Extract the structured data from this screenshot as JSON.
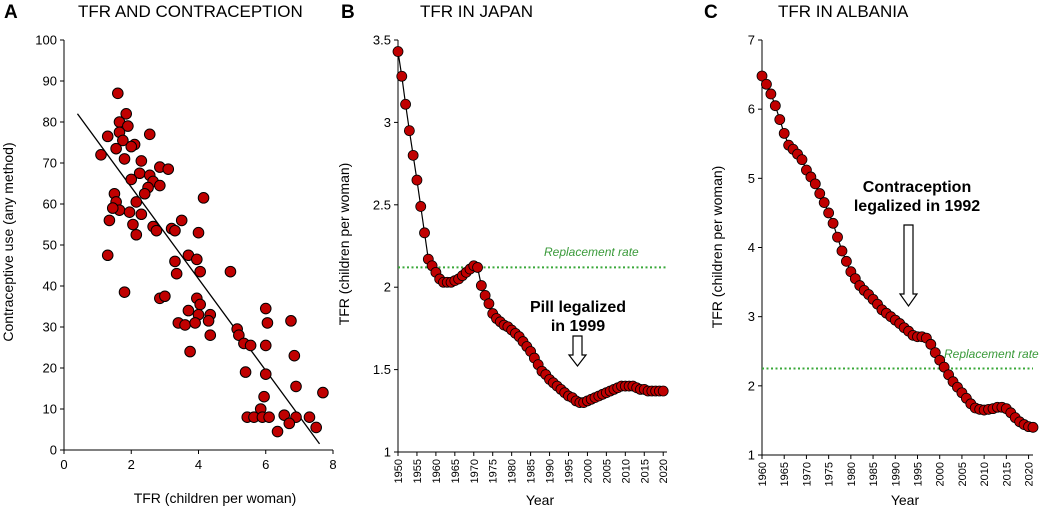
{
  "chart_data": [
    {
      "type": "scatter",
      "panel_letter": "A",
      "title": "TFR AND CONTRACEPTION",
      "xlabel": "TFR (children per woman)",
      "ylabel": "Contraceptive use (any method)",
      "xlim": [
        0,
        8
      ],
      "ylim": [
        0,
        100
      ],
      "xticks": [
        "0",
        "2",
        "4",
        "6",
        "8"
      ],
      "yticks": [
        "0",
        "10",
        "20",
        "30",
        "40",
        "50",
        "60",
        "70",
        "80",
        "90",
        "100"
      ],
      "point_color": "#c00000",
      "points": [
        [
          1.6,
          87
        ],
        [
          1.85,
          82
        ],
        [
          1.65,
          80
        ],
        [
          1.9,
          79
        ],
        [
          1.3,
          76.5
        ],
        [
          1.65,
          77.5
        ],
        [
          2.55,
          77
        ],
        [
          1.75,
          75.5
        ],
        [
          2.1,
          74.5
        ],
        [
          1.55,
          73.5
        ],
        [
          2.0,
          74
        ],
        [
          1.1,
          72
        ],
        [
          2.3,
          70.5
        ],
        [
          1.8,
          71
        ],
        [
          2.85,
          69
        ],
        [
          3.1,
          68.5
        ],
        [
          2.25,
          67.5
        ],
        [
          2.55,
          67
        ],
        [
          2.65,
          65.5
        ],
        [
          2.0,
          66
        ],
        [
          2.5,
          64
        ],
        [
          2.85,
          64.5
        ],
        [
          2.4,
          62.5
        ],
        [
          1.5,
          62.5
        ],
        [
          1.55,
          60.5
        ],
        [
          2.15,
          60.5
        ],
        [
          1.65,
          58.5
        ],
        [
          1.45,
          59
        ],
        [
          1.95,
          58
        ],
        [
          2.3,
          57.5
        ],
        [
          4.15,
          61.5
        ],
        [
          1.35,
          56
        ],
        [
          2.05,
          55
        ],
        [
          2.65,
          54.5
        ],
        [
          2.75,
          53.5
        ],
        [
          2.15,
          52.5
        ],
        [
          3.2,
          54
        ],
        [
          3.3,
          53.5
        ],
        [
          3.5,
          56
        ],
        [
          4.0,
          53
        ],
        [
          4.95,
          43.5
        ],
        [
          1.3,
          47.5
        ],
        [
          3.7,
          47.5
        ],
        [
          3.95,
          46.5
        ],
        [
          3.3,
          46
        ],
        [
          3.35,
          43
        ],
        [
          4.05,
          43.5
        ],
        [
          1.8,
          38.5
        ],
        [
          2.85,
          37
        ],
        [
          3.0,
          37.5
        ],
        [
          3.95,
          37
        ],
        [
          4.05,
          35.5
        ],
        [
          3.7,
          34
        ],
        [
          4.0,
          33
        ],
        [
          4.35,
          33
        ],
        [
          4.3,
          31.5
        ],
        [
          3.4,
          31
        ],
        [
          3.6,
          30.5
        ],
        [
          3.9,
          31
        ],
        [
          3.75,
          24
        ],
        [
          4.35,
          28
        ],
        [
          5.15,
          29.5
        ],
        [
          5.2,
          28
        ],
        [
          6.05,
          31
        ],
        [
          6.0,
          34.5
        ],
        [
          6.75,
          31.5
        ],
        [
          5.35,
          26
        ],
        [
          5.55,
          25.5
        ],
        [
          6.0,
          25.5
        ],
        [
          6.85,
          23
        ],
        [
          5.4,
          19
        ],
        [
          6.0,
          18.5
        ],
        [
          6.9,
          15.5
        ],
        [
          5.95,
          13
        ],
        [
          7.7,
          14
        ],
        [
          5.85,
          10
        ],
        [
          5.45,
          8
        ],
        [
          5.65,
          8
        ],
        [
          5.9,
          8
        ],
        [
          6.1,
          8
        ],
        [
          6.55,
          8.5
        ],
        [
          6.9,
          8
        ],
        [
          7.3,
          8
        ],
        [
          6.7,
          6.5
        ],
        [
          7.5,
          5.5
        ],
        [
          6.35,
          4.5
        ]
      ],
      "trendline": {
        "x": [
          0.4,
          7.6
        ],
        "y": [
          82,
          1.5
        ]
      }
    },
    {
      "type": "line",
      "panel_letter": "B",
      "title": "TFR IN JAPAN",
      "xlabel": "Year",
      "ylabel": "TFR (children per woman)",
      "xlim": [
        1950,
        2021
      ],
      "ylim": [
        1,
        3.5
      ],
      "xticks": [
        "1950",
        "1955",
        "1960",
        "1965",
        "1970",
        "1975",
        "1980",
        "1985",
        "1990",
        "1995",
        "2000",
        "2005",
        "2010",
        "2015",
        "2020"
      ],
      "yticks": [
        "1",
        "1.5",
        "2",
        "2.5",
        "3",
        "3.5"
      ],
      "point_color": "#c00000",
      "years_start": 1950,
      "values": [
        3.43,
        3.28,
        3.11,
        2.95,
        2.8,
        2.65,
        2.49,
        2.33,
        2.17,
        2.13,
        2.09,
        2.05,
        2.03,
        2.03,
        2.03,
        2.04,
        2.05,
        2.07,
        2.09,
        2.11,
        2.13,
        2.12,
        2.01,
        1.95,
        1.9,
        1.84,
        1.81,
        1.79,
        1.77,
        1.76,
        1.74,
        1.72,
        1.7,
        1.67,
        1.64,
        1.61,
        1.57,
        1.53,
        1.49,
        1.47,
        1.44,
        1.42,
        1.4,
        1.38,
        1.36,
        1.34,
        1.33,
        1.31,
        1.3,
        1.3,
        1.31,
        1.32,
        1.33,
        1.34,
        1.35,
        1.36,
        1.37,
        1.38,
        1.39,
        1.4,
        1.4,
        1.4,
        1.4,
        1.39,
        1.38,
        1.38,
        1.37,
        1.37,
        1.37,
        1.37,
        1.37
      ],
      "replacement_rate": {
        "label": "Replacement rate",
        "value": 2.12,
        "color": "#3aa83a"
      },
      "annotation": {
        "line1": "Pill legalized",
        "line2": "in 1999",
        "year": 1998
      }
    },
    {
      "type": "line",
      "panel_letter": "C",
      "title": "TFR IN ALBANIA",
      "xlabel": "Year",
      "ylabel": "TFR (children per woman)",
      "xlim": [
        1960,
        2021
      ],
      "ylim": [
        1,
        7
      ],
      "xticks": [
        "1960",
        "1965",
        "1970",
        "1975",
        "1980",
        "1985",
        "1990",
        "1995",
        "2000",
        "2005",
        "2010",
        "2015",
        "2020"
      ],
      "yticks": [
        "1",
        "2",
        "3",
        "4",
        "5",
        "6",
        "7"
      ],
      "point_color": "#c00000",
      "years_start": 1960,
      "values": [
        6.48,
        6.36,
        6.22,
        6.05,
        5.85,
        5.65,
        5.48,
        5.42,
        5.35,
        5.27,
        5.12,
        5.02,
        4.92,
        4.78,
        4.65,
        4.5,
        4.35,
        4.15,
        3.95,
        3.8,
        3.65,
        3.55,
        3.45,
        3.38,
        3.32,
        3.25,
        3.18,
        3.1,
        3.05,
        3.0,
        2.95,
        2.9,
        2.84,
        2.79,
        2.73,
        2.71,
        2.71,
        2.69,
        2.6,
        2.48,
        2.37,
        2.27,
        2.16,
        2.06,
        1.98,
        1.9,
        1.82,
        1.74,
        1.68,
        1.66,
        1.65,
        1.66,
        1.67,
        1.69,
        1.69,
        1.67,
        1.61,
        1.54,
        1.48,
        1.44,
        1.41,
        1.4
      ],
      "replacement_rate": {
        "label": "Replacement rate",
        "value": 2.25,
        "color": "#3aa83a"
      },
      "annotation": {
        "line1": "Contraception",
        "line2": "legalized in 1992",
        "year": 1992
      }
    }
  ]
}
